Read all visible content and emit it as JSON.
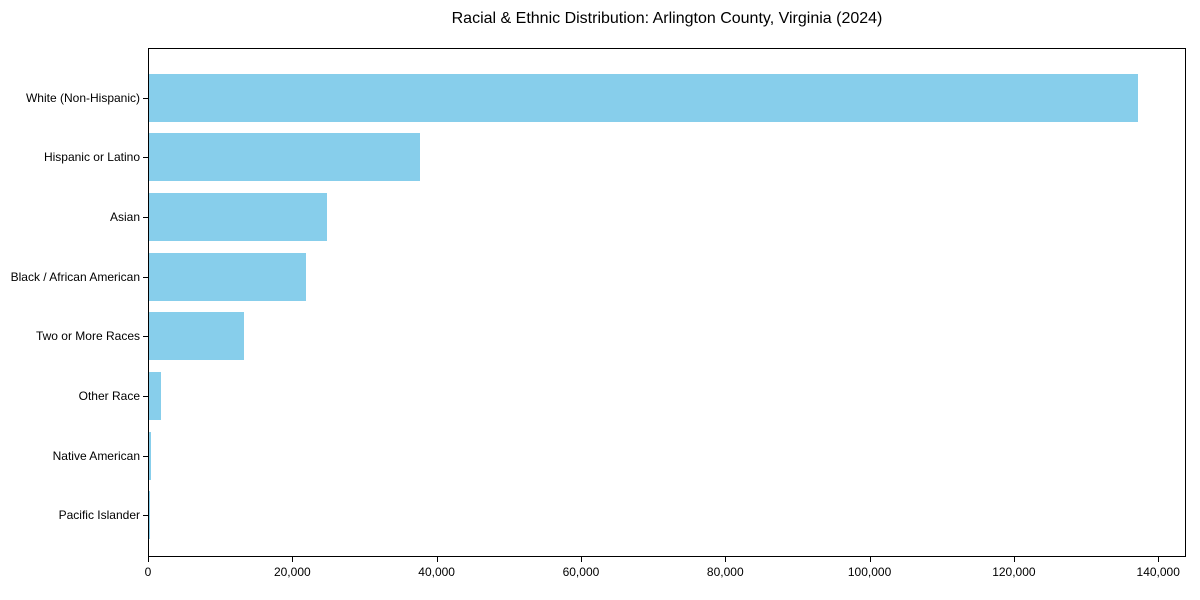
{
  "chart_data": {
    "type": "bar",
    "orientation": "horizontal",
    "title": "Racial & Ethnic Distribution: Arlington County, Virginia (2024)",
    "xlabel": "",
    "ylabel": "",
    "categories": [
      "White (Non-Hispanic)",
      "Hispanic or Latino",
      "Asian",
      "Black / African American",
      "Two or More Races",
      "Other Race",
      "Native American",
      "Pacific Islander"
    ],
    "values": [
      137000,
      37600,
      24700,
      21800,
      13100,
      1700,
      300,
      100
    ],
    "xlim": [
      0,
      143850
    ],
    "x_ticks": [
      {
        "value": 0,
        "label": "0"
      },
      {
        "value": 20000,
        "label": "20,000"
      },
      {
        "value": 40000,
        "label": "40,000"
      },
      {
        "value": 60000,
        "label": "60,000"
      },
      {
        "value": 80000,
        "label": "80,000"
      },
      {
        "value": 100000,
        "label": "100,000"
      },
      {
        "value": 120000,
        "label": "120,000"
      },
      {
        "value": 140000,
        "label": "140,000"
      }
    ],
    "bar_color": "#87CEEB",
    "grid": false,
    "legend": null,
    "axis_color": "#000000",
    "background_color": "#ffffff"
  }
}
